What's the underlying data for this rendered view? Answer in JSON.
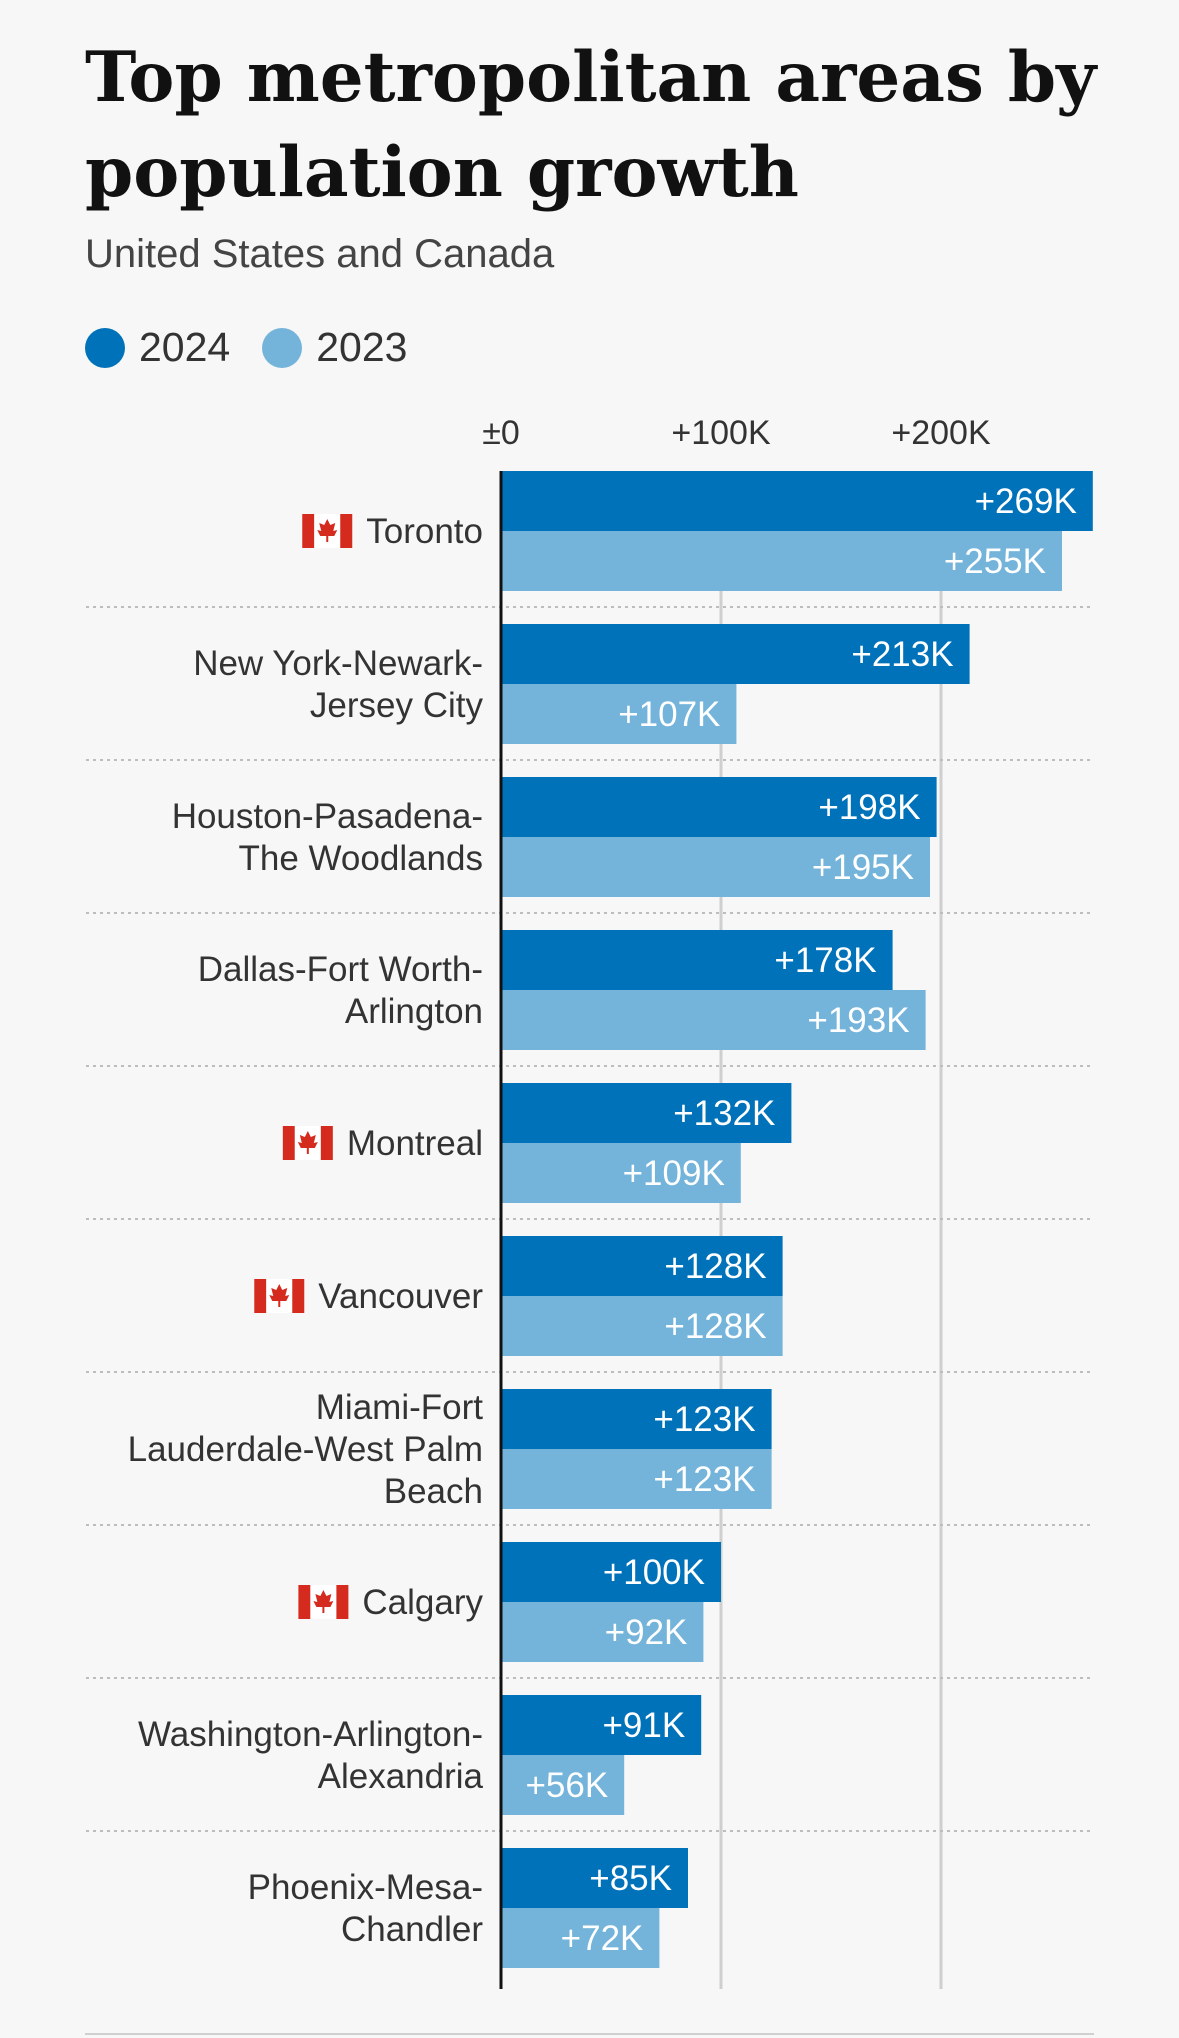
{
  "title": "Top metropolitan areas by population growth",
  "subtitle": "United States and Canada",
  "colors": {
    "series_2024": "#0072ba",
    "series_2023": "#74b4da",
    "flag_red": "#d52b1e"
  },
  "chart_data": {
    "type": "bar",
    "orientation": "horizontal",
    "title": "Top metropolitan areas by population growth",
    "subtitle": "United States and Canada",
    "xlim": [
      0,
      269
    ],
    "x_ticks": [
      0,
      100,
      200
    ],
    "x_tick_labels": [
      "±0",
      "+100K",
      "+200K"
    ],
    "grid": true,
    "legend_placement": "top-left",
    "categories": [
      {
        "label": [
          "Toronto"
        ],
        "flag": "canada-flag-icon"
      },
      {
        "label": [
          "New York-Newark-",
          "Jersey City"
        ],
        "flag": null
      },
      {
        "label": [
          "Houston-Pasadena-",
          "The Woodlands"
        ],
        "flag": null
      },
      {
        "label": [
          "Dallas-Fort Worth-",
          "Arlington"
        ],
        "flag": null
      },
      {
        "label": [
          "Montreal"
        ],
        "flag": "canada-flag-icon"
      },
      {
        "label": [
          "Vancouver"
        ],
        "flag": "canada-flag-icon"
      },
      {
        "label": [
          "Miami-Fort",
          "Lauderdale-West Palm",
          "Beach"
        ],
        "flag": null
      },
      {
        "label": [
          "Calgary"
        ],
        "flag": "canada-flag-icon"
      },
      {
        "label": [
          "Washington-Arlington-",
          "Alexandria"
        ],
        "flag": null
      },
      {
        "label": [
          "Phoenix-Mesa-",
          "Chandler"
        ],
        "flag": null
      }
    ],
    "series": [
      {
        "name": "2024",
        "values": [
          269,
          213,
          198,
          178,
          132,
          128,
          123,
          100,
          91,
          85
        ],
        "labels": [
          "+269K",
          "+213K",
          "+198K",
          "+178K",
          "+132K",
          "+128K",
          "+123K",
          "+100K",
          "+91K",
          "+85K"
        ]
      },
      {
        "name": "2023",
        "values": [
          255,
          107,
          195,
          193,
          109,
          128,
          123,
          92,
          56,
          72
        ],
        "labels": [
          "+255K",
          "+107K",
          "+195K",
          "+193K",
          "+109K",
          "+128K",
          "+123K",
          "+92K",
          "+56K",
          "+72K"
        ]
      }
    ]
  }
}
